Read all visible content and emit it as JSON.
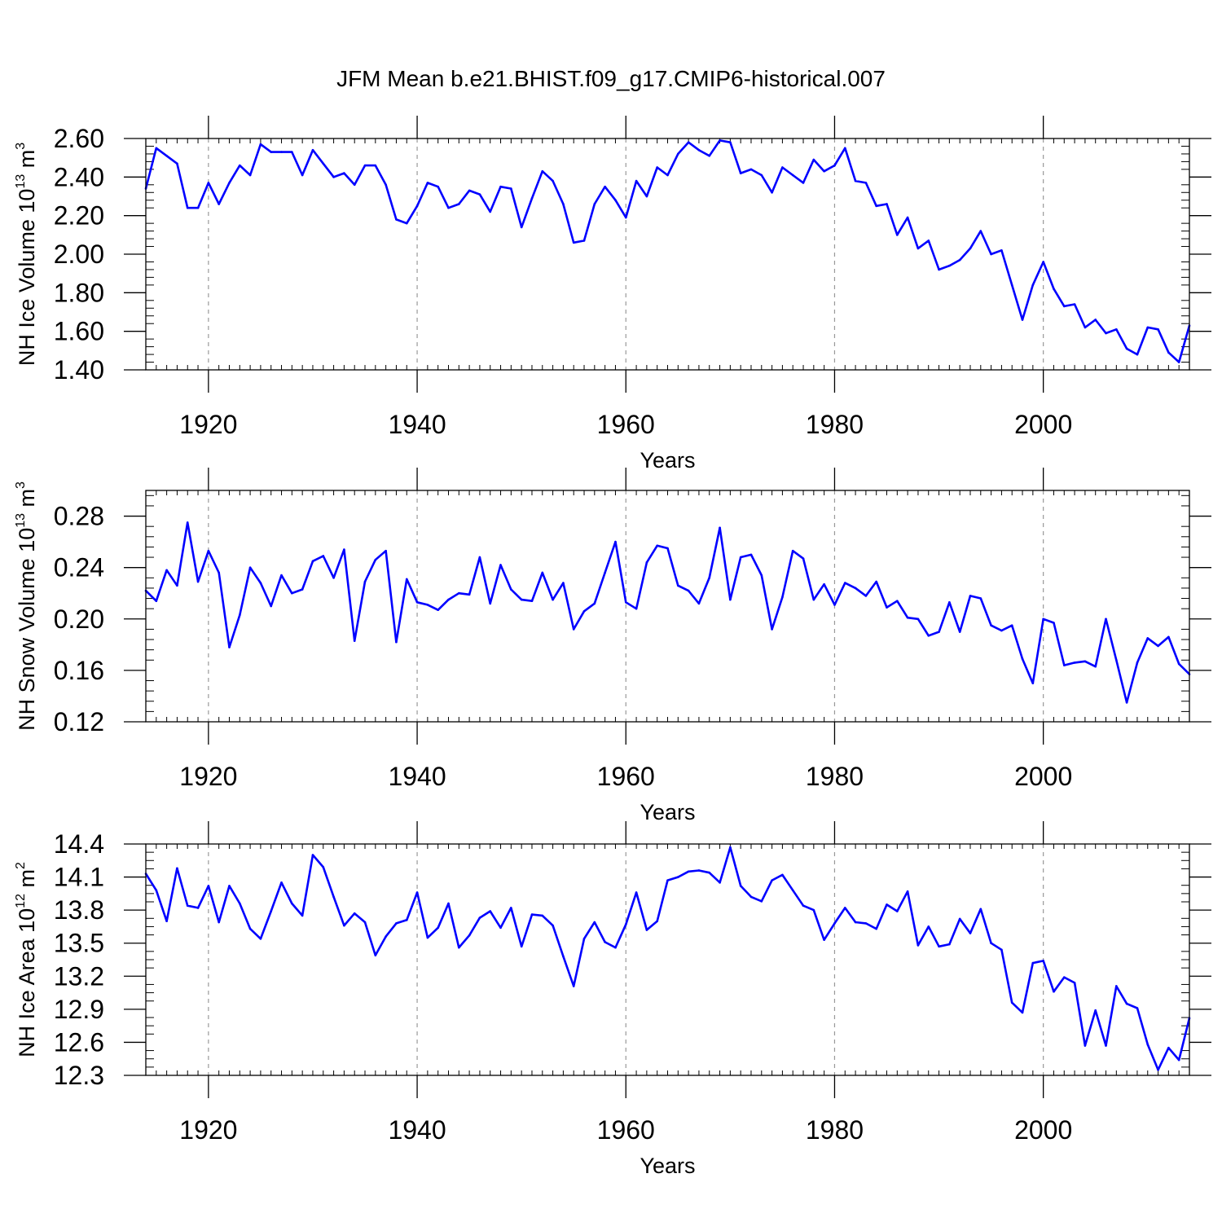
{
  "title": "JFM Mean b.e21.BHIST.f09_g17.CMIP6-historical.007",
  "colors": {
    "series": "#0000ff",
    "axis": "#000000",
    "grid": "#999999"
  },
  "chart_data": [
    {
      "type": "line",
      "title": "JFM Mean b.e21.BHIST.f09_g17.CMIP6-historical.007",
      "ylabel": {
        "main": "NH Ice Volume 10",
        "sup1": "13",
        "mid": " m",
        "sup2": "3"
      },
      "xlabel": "Years",
      "xlim": [
        1914,
        2014
      ],
      "ylim": [
        1.4,
        2.6
      ],
      "yticks": [
        "1.40",
        "1.60",
        "1.80",
        "2.00",
        "2.20",
        "2.40",
        "2.60"
      ],
      "ytick_values": [
        1.4,
        1.6,
        1.8,
        2.0,
        2.2,
        2.4,
        2.6
      ],
      "xticks": [
        "1920",
        "1940",
        "1960",
        "1980",
        "2000"
      ],
      "xtick_values": [
        1920,
        1940,
        1960,
        1980,
        2000
      ],
      "grid": "vertical dashed at major x ticks",
      "start_year": 1914,
      "values": [
        2.34,
        2.55,
        2.51,
        2.47,
        2.24,
        2.24,
        2.37,
        2.26,
        2.37,
        2.46,
        2.41,
        2.57,
        2.53,
        2.53,
        2.53,
        2.41,
        2.54,
        2.47,
        2.4,
        2.42,
        2.36,
        2.46,
        2.46,
        2.36,
        2.18,
        2.16,
        2.25,
        2.37,
        2.35,
        2.24,
        2.26,
        2.33,
        2.31,
        2.22,
        2.35,
        2.34,
        2.14,
        2.29,
        2.43,
        2.38,
        2.26,
        2.06,
        2.07,
        2.26,
        2.35,
        2.28,
        2.19,
        2.38,
        2.3,
        2.45,
        2.41,
        2.52,
        2.58,
        2.54,
        2.51,
        2.59,
        2.58,
        2.42,
        2.44,
        2.41,
        2.32,
        2.45,
        2.41,
        2.37,
        2.49,
        2.43,
        2.46,
        2.55,
        2.38,
        2.37,
        2.25,
        2.26,
        2.1,
        2.19,
        2.03,
        2.07,
        1.92,
        1.94,
        1.97,
        2.03,
        2.12,
        2.0,
        2.02,
        1.84,
        1.66,
        1.84,
        1.96,
        1.82,
        1.73,
        1.74,
        1.62,
        1.66,
        1.59,
        1.61,
        1.51,
        1.48,
        1.62,
        1.61,
        1.49,
        1.44,
        1.63
      ]
    },
    {
      "type": "line",
      "ylabel": {
        "main": "NH Snow Volume 10",
        "sup1": "13",
        "mid": " m",
        "sup2": "3"
      },
      "xlabel": "Years",
      "xlim": [
        1914,
        2014
      ],
      "ylim": [
        0.12,
        0.3
      ],
      "yticks": [
        "0.12",
        "0.16",
        "0.20",
        "0.24",
        "0.28"
      ],
      "ytick_values": [
        0.12,
        0.16,
        0.2,
        0.24,
        0.28
      ],
      "xticks": [
        "1920",
        "1940",
        "1960",
        "1980",
        "2000"
      ],
      "xtick_values": [
        1920,
        1940,
        1960,
        1980,
        2000
      ],
      "grid": "vertical dashed at major x ticks",
      "start_year": 1914,
      "values": [
        0.222,
        0.214,
        0.238,
        0.226,
        0.275,
        0.229,
        0.253,
        0.236,
        0.178,
        0.203,
        0.24,
        0.228,
        0.21,
        0.234,
        0.22,
        0.223,
        0.245,
        0.249,
        0.232,
        0.254,
        0.183,
        0.229,
        0.246,
        0.253,
        0.182,
        0.231,
        0.213,
        0.211,
        0.207,
        0.215,
        0.22,
        0.219,
        0.248,
        0.212,
        0.242,
        0.223,
        0.215,
        0.214,
        0.236,
        0.215,
        0.228,
        0.192,
        0.206,
        0.212,
        0.236,
        0.26,
        0.213,
        0.208,
        0.244,
        0.257,
        0.255,
        0.226,
        0.222,
        0.212,
        0.232,
        0.271,
        0.215,
        0.248,
        0.25,
        0.234,
        0.192,
        0.217,
        0.253,
        0.247,
        0.215,
        0.227,
        0.211,
        0.228,
        0.224,
        0.218,
        0.229,
        0.209,
        0.214,
        0.201,
        0.2,
        0.187,
        0.19,
        0.213,
        0.19,
        0.218,
        0.216,
        0.195,
        0.191,
        0.195,
        0.169,
        0.15,
        0.2,
        0.197,
        0.164,
        0.166,
        0.167,
        0.163,
        0.2,
        0.168,
        0.135,
        0.166,
        0.185,
        0.179,
        0.186,
        0.165,
        0.157
      ]
    },
    {
      "type": "line",
      "ylabel": {
        "main": "NH Ice Area 10",
        "sup1": "12",
        "mid": " m",
        "sup2": "2"
      },
      "xlabel": "Years",
      "xlim": [
        1914,
        2014
      ],
      "ylim": [
        12.3,
        14.4
      ],
      "yticks": [
        "12.3",
        "12.6",
        "12.9",
        "13.2",
        "13.5",
        "13.8",
        "14.1",
        "14.4"
      ],
      "ytick_values": [
        12.3,
        12.6,
        12.9,
        13.2,
        13.5,
        13.8,
        14.1,
        14.4
      ],
      "xticks": [
        "1920",
        "1940",
        "1960",
        "1980",
        "2000"
      ],
      "xtick_values": [
        1920,
        1940,
        1960,
        1980,
        2000
      ],
      "grid": "vertical dashed at major x ticks",
      "start_year": 1914,
      "values": [
        14.13,
        13.98,
        13.7,
        14.18,
        13.84,
        13.82,
        14.02,
        13.69,
        14.02,
        13.86,
        13.63,
        13.54,
        13.79,
        14.05,
        13.86,
        13.75,
        14.3,
        14.19,
        13.92,
        13.66,
        13.77,
        13.69,
        13.39,
        13.56,
        13.68,
        13.71,
        13.96,
        13.55,
        13.64,
        13.86,
        13.46,
        13.57,
        13.73,
        13.79,
        13.64,
        13.82,
        13.47,
        13.76,
        13.75,
        13.66,
        13.38,
        13.11,
        13.54,
        13.69,
        13.51,
        13.46,
        13.67,
        13.96,
        13.62,
        13.7,
        14.07,
        14.1,
        14.15,
        14.16,
        14.14,
        14.05,
        14.37,
        14.02,
        13.92,
        13.88,
        14.07,
        14.12,
        13.98,
        13.84,
        13.8,
        13.53,
        13.68,
        13.82,
        13.69,
        13.68,
        13.63,
        13.85,
        13.79,
        13.97,
        13.48,
        13.65,
        13.47,
        13.49,
        13.72,
        13.59,
        13.81,
        13.5,
        13.44,
        12.96,
        12.87,
        13.32,
        13.34,
        13.06,
        13.19,
        13.14,
        12.57,
        12.89,
        12.57,
        13.11,
        12.95,
        12.91,
        12.58,
        12.35,
        12.55,
        12.44,
        12.82
      ]
    }
  ]
}
